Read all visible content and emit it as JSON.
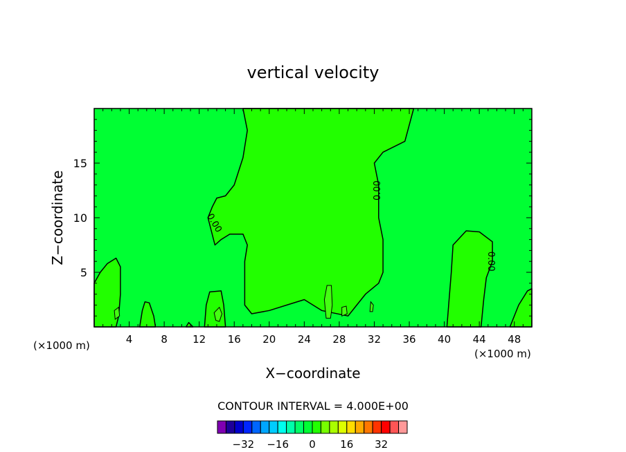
{
  "chart_data": {
    "type": "heatmap",
    "title": "vertical velocity",
    "xlabel": "X−coordinate",
    "ylabel": "Z−coordinate",
    "x_unit_left": "(×1000 m)",
    "x_unit_right": "(×1000 m)",
    "xlim": [
      0,
      50
    ],
    "ylim": [
      0,
      20
    ],
    "x_ticks": [
      "4",
      "8",
      "12",
      "16",
      "20",
      "24",
      "28",
      "32",
      "36",
      "40",
      "44",
      "48"
    ],
    "y_ticks": [
      "5",
      "10",
      "15"
    ],
    "x_tick_values": [
      4,
      8,
      12,
      16,
      20,
      24,
      28,
      32,
      36,
      40,
      44,
      48
    ],
    "y_tick_values": [
      5,
      10,
      15
    ],
    "contour_interval_text": "CONTOUR INTERVAL = 4.000E+00",
    "contour_labels": [
      "0.00",
      "0.00",
      "0.00"
    ],
    "background_level_color": "#00ff33",
    "positive_level_color": "#22ff00",
    "regions": [
      {
        "level": "positive",
        "points": [
          [
            17,
            20
          ],
          [
            36.5,
            20
          ],
          [
            35.5,
            17
          ],
          [
            33,
            16
          ],
          [
            32,
            15
          ],
          [
            32.5,
            13
          ],
          [
            32.5,
            10
          ],
          [
            33,
            8
          ],
          [
            33,
            5
          ],
          [
            32.5,
            4
          ],
          [
            31,
            3
          ],
          [
            30,
            2
          ],
          [
            29,
            1
          ],
          [
            26,
            1.5
          ],
          [
            24,
            2.5
          ],
          [
            22,
            2
          ],
          [
            20,
            1.5
          ],
          [
            18,
            1.2
          ],
          [
            17.2,
            2
          ],
          [
            17.2,
            6
          ],
          [
            17.5,
            7.5
          ],
          [
            17,
            8.5
          ],
          [
            15.5,
            8.5
          ],
          [
            14.5,
            8
          ],
          [
            13.8,
            7.5
          ],
          [
            13,
            10
          ],
          [
            13.5,
            11
          ],
          [
            14,
            11.8
          ],
          [
            15,
            12
          ],
          [
            16,
            13
          ],
          [
            17,
            15.5
          ],
          [
            17.5,
            18
          ]
        ]
      },
      {
        "level": "positive",
        "points": [
          [
            40.3,
            0
          ],
          [
            40.5,
            2
          ],
          [
            40.8,
            5
          ],
          [
            41,
            7.5
          ],
          [
            42.5,
            8.8
          ],
          [
            44,
            8.7
          ],
          [
            45.5,
            7.8
          ],
          [
            45.5,
            6
          ],
          [
            44.8,
            4.5
          ],
          [
            44.5,
            2.5
          ],
          [
            44.2,
            0
          ]
        ]
      },
      {
        "level": "positive",
        "points": [
          [
            12.6,
            0
          ],
          [
            12.8,
            2
          ],
          [
            13.2,
            3.2
          ],
          [
            14.5,
            3.3
          ],
          [
            14.8,
            2
          ],
          [
            15,
            0
          ]
        ]
      },
      {
        "level": "positive",
        "points": [
          [
            0,
            0
          ],
          [
            0,
            4
          ],
          [
            0.7,
            5
          ],
          [
            1.5,
            5.8
          ],
          [
            2.5,
            6.3
          ],
          [
            3,
            5.5
          ],
          [
            3,
            3
          ],
          [
            2.8,
            1
          ],
          [
            2.5,
            0
          ]
        ]
      },
      {
        "level": "positive",
        "points": [
          [
            5.2,
            0
          ],
          [
            5.5,
            1.5
          ],
          [
            5.8,
            2.3
          ],
          [
            6.3,
            2.2
          ],
          [
            6.8,
            1
          ],
          [
            7,
            0
          ]
        ]
      },
      {
        "level": "positive",
        "points": [
          [
            47.5,
            0
          ],
          [
            48.5,
            2
          ],
          [
            49.5,
            3.3
          ],
          [
            50,
            3.5
          ],
          [
            50,
            0
          ]
        ]
      },
      {
        "level": "positive",
        "points": [
          [
            10.5,
            0
          ],
          [
            10.8,
            0.4
          ],
          [
            11.3,
            0
          ]
        ]
      }
    ],
    "islands": [
      [
        [
          26.5,
          0.8
        ],
        [
          26.3,
          2.5
        ],
        [
          26.6,
          3.8
        ],
        [
          27.1,
          3.8
        ],
        [
          27.2,
          2
        ],
        [
          27,
          0.8
        ]
      ],
      [
        [
          13.9,
          0.6
        ],
        [
          13.7,
          1.3
        ],
        [
          14.3,
          1.8
        ],
        [
          14.6,
          1.2
        ],
        [
          14.3,
          0.5
        ]
      ],
      [
        [
          2.4,
          0.7
        ],
        [
          2.3,
          1.5
        ],
        [
          2.8,
          1.8
        ],
        [
          2.9,
          1.0
        ]
      ],
      [
        [
          28.3,
          1.0
        ],
        [
          28.3,
          1.8
        ],
        [
          28.8,
          1.9
        ],
        [
          28.9,
          1.2
        ]
      ],
      [
        [
          31.5,
          1.4
        ],
        [
          31.6,
          2.3
        ],
        [
          31.9,
          2.0
        ],
        [
          31.8,
          1.4
        ]
      ]
    ],
    "colorbar": {
      "colors": [
        "#7f00b2",
        "#1d0099",
        "#0000cc",
        "#0026ff",
        "#0066ff",
        "#00a6ff",
        "#00ccff",
        "#00ffee",
        "#00ffaa",
        "#00ff66",
        "#00ff33",
        "#22ff00",
        "#77ff00",
        "#aaff00",
        "#ddff00",
        "#ffdd00",
        "#ffaa00",
        "#ff7700",
        "#ff3300",
        "#ff0000",
        "#ff5555",
        "#ff9999"
      ],
      "tick_labels": [
        "−32",
        "−16",
        "0",
        "16",
        "32"
      ],
      "tick_values": [
        -32,
        -16,
        0,
        16,
        32
      ],
      "min": -44,
      "max": 44
    },
    "grid": false,
    "legend": "bottom-center"
  }
}
